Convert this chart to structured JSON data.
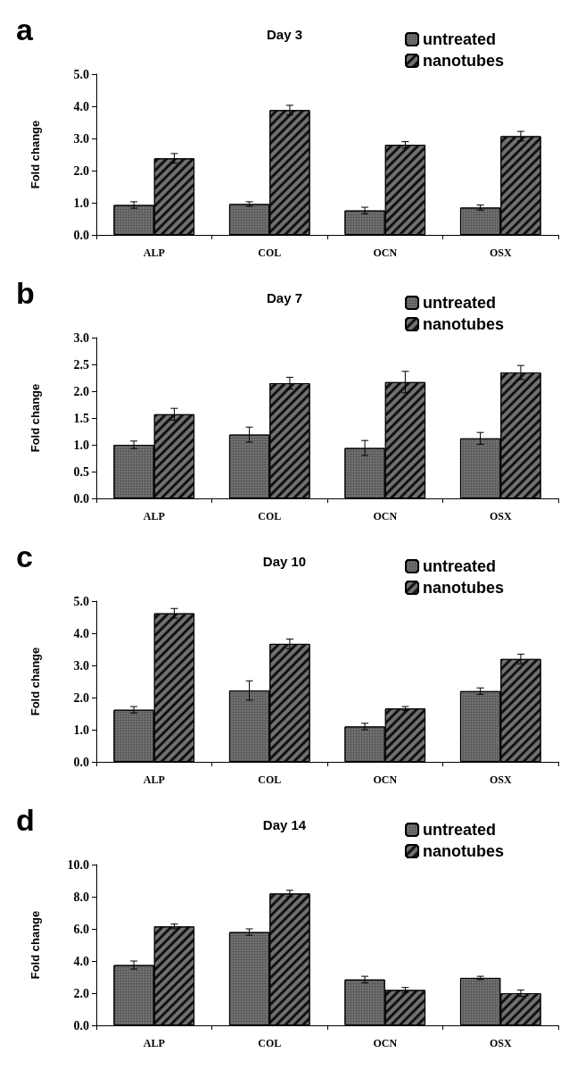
{
  "chart_data": [
    {
      "type": "bar",
      "title": "Day 3",
      "ylabel": "Fold change",
      "annotations": [
        "a"
      ],
      "categories": [
        "ALP",
        "COL",
        "OCN",
        "OSX"
      ],
      "series": [
        {
          "name": "untreated",
          "color": "#707070",
          "values": [
            0.93,
            0.96,
            0.76,
            0.85
          ],
          "errors": [
            0.1,
            0.07,
            0.1,
            0.08
          ]
        },
        {
          "name": "nanotubes",
          "color": "#707070",
          "values": [
            2.38,
            3.88,
            2.8,
            3.07
          ],
          "errors": [
            0.15,
            0.15,
            0.1,
            0.15
          ]
        }
      ],
      "ylim": [
        0,
        5
      ],
      "yticks": [
        {
          "value": 0,
          "label": "0.0"
        },
        {
          "value": 1,
          "label": "1.0"
        },
        {
          "value": 2,
          "label": "2.0"
        },
        {
          "value": 3,
          "label": "3.0"
        },
        {
          "value": 4,
          "label": "4.0"
        },
        {
          "value": 5,
          "label": "5.0"
        }
      ],
      "grid": false,
      "legend": "top right"
    },
    {
      "type": "bar",
      "title": "Day 7",
      "ylabel": "Fold change",
      "annotations": [
        "b"
      ],
      "categories": [
        "ALP",
        "COL",
        "OCN",
        "OSX"
      ],
      "series": [
        {
          "name": "untreated",
          "color": "#707070",
          "values": [
            1.0,
            1.19,
            0.94,
            1.12
          ],
          "errors": [
            0.07,
            0.14,
            0.14,
            0.11
          ]
        },
        {
          "name": "nanotubes",
          "color": "#707070",
          "values": [
            1.57,
            2.15,
            2.17,
            2.35
          ],
          "errors": [
            0.11,
            0.11,
            0.2,
            0.13
          ]
        }
      ],
      "ylim": [
        0,
        3
      ],
      "yticks": [
        {
          "value": 0,
          "label": "0.0"
        },
        {
          "value": 0.5,
          "label": "0.5"
        },
        {
          "value": 1,
          "label": "1.0"
        },
        {
          "value": 1.5,
          "label": "1.5"
        },
        {
          "value": 2,
          "label": "2.0"
        },
        {
          "value": 2.5,
          "label": "2.5"
        },
        {
          "value": 3,
          "label": "3.0"
        }
      ],
      "grid": false,
      "legend": "top right"
    },
    {
      "type": "bar",
      "title": "Day 10",
      "ylabel": "Fold change",
      "annotations": [
        "c"
      ],
      "categories": [
        "ALP",
        "COL",
        "OCN",
        "OSX"
      ],
      "series": [
        {
          "name": "untreated",
          "color": "#707070",
          "values": [
            1.62,
            2.22,
            1.1,
            2.2
          ],
          "errors": [
            0.1,
            0.3,
            0.1,
            0.1
          ]
        },
        {
          "name": "nanotubes",
          "color": "#707070",
          "values": [
            4.62,
            3.67,
            1.66,
            3.2
          ],
          "errors": [
            0.15,
            0.15,
            0.06,
            0.15
          ]
        }
      ],
      "ylim": [
        0,
        5
      ],
      "yticks": [
        {
          "value": 0,
          "label": "0.0"
        },
        {
          "value": 1,
          "label": "1.0"
        },
        {
          "value": 2,
          "label": "2.0"
        },
        {
          "value": 3,
          "label": "3.0"
        },
        {
          "value": 4,
          "label": "4.0"
        },
        {
          "value": 5,
          "label": "5.0"
        }
      ],
      "grid": false,
      "legend": "top right"
    },
    {
      "type": "bar",
      "title": "Day 14",
      "ylabel": "Fold change",
      "annotations": [
        "d"
      ],
      "categories": [
        "ALP",
        "COL",
        "OCN",
        "OSX"
      ],
      "series": [
        {
          "name": "untreated",
          "color": "#707070",
          "values": [
            3.75,
            5.8,
            2.85,
            2.95
          ],
          "errors": [
            0.25,
            0.2,
            0.2,
            0.1
          ]
        },
        {
          "name": "nanotubes",
          "color": "#707070",
          "values": [
            6.15,
            8.2,
            2.2,
            2.0
          ],
          "errors": [
            0.15,
            0.2,
            0.15,
            0.2
          ]
        }
      ],
      "ylim": [
        0,
        10
      ],
      "yticks": [
        {
          "value": 0,
          "label": "0.0"
        },
        {
          "value": 2,
          "label": "2.0"
        },
        {
          "value": 4,
          "label": "4.0"
        },
        {
          "value": 6,
          "label": "6.0"
        },
        {
          "value": 8,
          "label": "8.0"
        },
        {
          "value": 10,
          "label": "10.0"
        }
      ],
      "grid": false,
      "legend": "top right"
    }
  ]
}
